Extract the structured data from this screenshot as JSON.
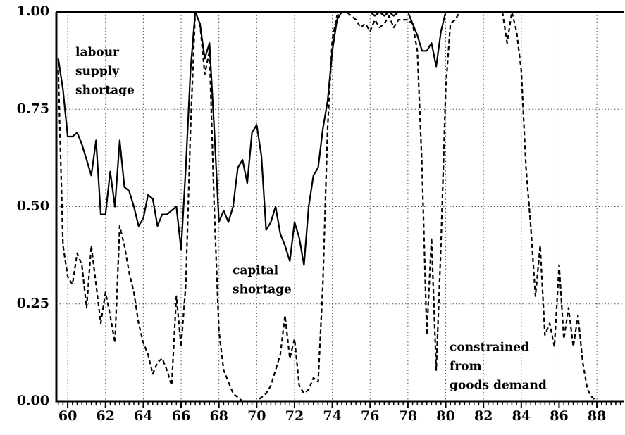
{
  "chart_data": {
    "type": "line",
    "x": [
      59.5,
      59.75,
      60,
      60.25,
      60.5,
      60.75,
      61,
      61.25,
      61.5,
      61.75,
      62,
      62.25,
      62.5,
      62.75,
      63,
      63.25,
      63.5,
      63.75,
      64,
      64.25,
      64.5,
      64.75,
      65,
      65.25,
      65.5,
      65.75,
      66,
      66.25,
      66.5,
      66.75,
      67,
      67.25,
      67.5,
      67.75,
      68,
      68.25,
      68.5,
      68.75,
      69,
      69.25,
      69.5,
      69.75,
      70,
      70.25,
      70.5,
      70.75,
      71,
      71.25,
      71.5,
      71.75,
      72,
      72.25,
      72.5,
      72.75,
      73,
      73.25,
      73.5,
      73.75,
      74,
      74.25,
      74.5,
      74.75,
      75,
      75.25,
      75.5,
      75.75,
      76,
      76.25,
      76.5,
      76.75,
      77,
      77.25,
      77.5,
      77.75,
      78,
      78.25,
      78.5,
      78.75,
      79,
      79.25,
      79.5,
      79.75,
      80,
      80.25,
      80.5,
      80.75,
      81,
      81.25,
      81.5,
      81.75,
      82,
      82.25,
      82.5,
      82.75,
      83,
      83.25,
      83.5,
      83.75,
      84,
      84.25,
      84.5,
      84.75,
      85,
      85.25,
      85.5,
      85.75,
      86,
      86.25,
      86.5,
      86.75,
      87,
      87.25,
      87.5,
      87.75,
      88,
      88.25,
      88.5,
      88.75,
      89,
      89.25
    ],
    "series": [
      {
        "color": "#000000",
        "dash": "solid",
        "values": [
          0.88,
          0.8,
          0.68,
          0.68,
          0.69,
          0.66,
          0.62,
          0.58,
          0.67,
          0.48,
          0.48,
          0.59,
          0.5,
          0.67,
          0.55,
          0.54,
          0.5,
          0.45,
          0.47,
          0.53,
          0.52,
          0.45,
          0.48,
          0.48,
          0.49,
          0.5,
          0.39,
          0.6,
          0.85,
          1.0,
          0.97,
          0.88,
          0.92,
          0.7,
          0.46,
          0.49,
          0.46,
          0.5,
          0.6,
          0.62,
          0.56,
          0.69,
          0.71,
          0.63,
          0.44,
          0.46,
          0.5,
          0.43,
          0.4,
          0.36,
          0.46,
          0.42,
          0.35,
          0.5,
          0.58,
          0.6,
          0.7,
          0.77,
          0.9,
          0.98,
          1.0,
          1.0,
          1.0,
          1.0,
          1.0,
          1.0,
          1.0,
          0.99,
          1.0,
          0.99,
          1.0,
          0.99,
          1.0,
          1.0,
          1.0,
          0.97,
          0.94,
          0.9,
          0.9,
          0.92,
          0.86,
          0.95,
          1.0,
          1.0,
          1.0,
          1.0,
          1.0,
          1.0,
          1.0,
          1.0,
          1.0,
          1.0,
          1.0,
          1.0,
          1.0,
          1.0,
          1.0,
          1.0,
          1.0,
          1.0,
          1.0,
          1.0,
          1.0,
          1.0,
          1.0,
          1.0,
          1.0,
          1.0,
          1.0,
          1.0,
          1.0,
          1.0,
          1.0,
          1.0,
          1.0,
          1.0,
          1.0,
          1.0,
          1.0,
          1.0
        ]
      },
      {
        "color": "#000000",
        "dash": "dashed",
        "values": [
          0.85,
          0.4,
          0.32,
          0.3,
          0.38,
          0.35,
          0.24,
          0.4,
          0.3,
          0.2,
          0.28,
          0.22,
          0.15,
          0.45,
          0.4,
          0.33,
          0.28,
          0.2,
          0.15,
          0.12,
          0.07,
          0.1,
          0.11,
          0.08,
          0.04,
          0.27,
          0.14,
          0.3,
          0.7,
          1.0,
          0.97,
          0.84,
          0.9,
          0.5,
          0.18,
          0.08,
          0.05,
          0.02,
          0.01,
          0,
          0,
          0,
          0,
          0.01,
          0.02,
          0.04,
          0.08,
          0.12,
          0.22,
          0.11,
          0.16,
          0.04,
          0.02,
          0.03,
          0.06,
          0.05,
          0.3,
          0.7,
          0.93,
          0.99,
          1.0,
          1.0,
          0.99,
          0.98,
          0.96,
          0.97,
          0.95,
          0.98,
          0.96,
          0.97,
          0.99,
          0.96,
          0.98,
          0.98,
          0.98,
          0.97,
          0.9,
          0.6,
          0.17,
          0.42,
          0.08,
          0.4,
          0.8,
          0.97,
          0.98,
          1.0,
          1.0,
          1.0,
          1.0,
          1.0,
          1.0,
          1.0,
          1.0,
          1.0,
          1.0,
          0.92,
          1.0,
          0.95,
          0.85,
          0.6,
          0.45,
          0.27,
          0.4,
          0.17,
          0.2,
          0.14,
          0.35,
          0.16,
          0.24,
          0.14,
          0.22,
          0.1,
          0.03,
          0.01,
          0,
          0,
          0,
          0,
          0,
          0
        ]
      }
    ],
    "xlim": [
      59.4,
      89.45
    ],
    "xticks": [
      60,
      62,
      64,
      66,
      68,
      70,
      72,
      74,
      76,
      78,
      80,
      82,
      84,
      86,
      88
    ],
    "ylim": [
      0,
      1
    ],
    "yticks": [
      {
        "value": 0,
        "label": "0.00"
      },
      {
        "value": 0.25,
        "label": "0.25"
      },
      {
        "value": 0.5,
        "label": "0.50"
      },
      {
        "value": 0.75,
        "label": "0.75"
      },
      {
        "value": 1,
        "label": "1.00"
      }
    ],
    "grid": true,
    "annotations": [
      {
        "lines": [
          "labour",
          "supply",
          "shortage"
        ]
      },
      {
        "lines": [
          "capital",
          "shortage"
        ]
      },
      {
        "lines": [
          "constrained",
          "from",
          "goods demand"
        ]
      }
    ]
  }
}
